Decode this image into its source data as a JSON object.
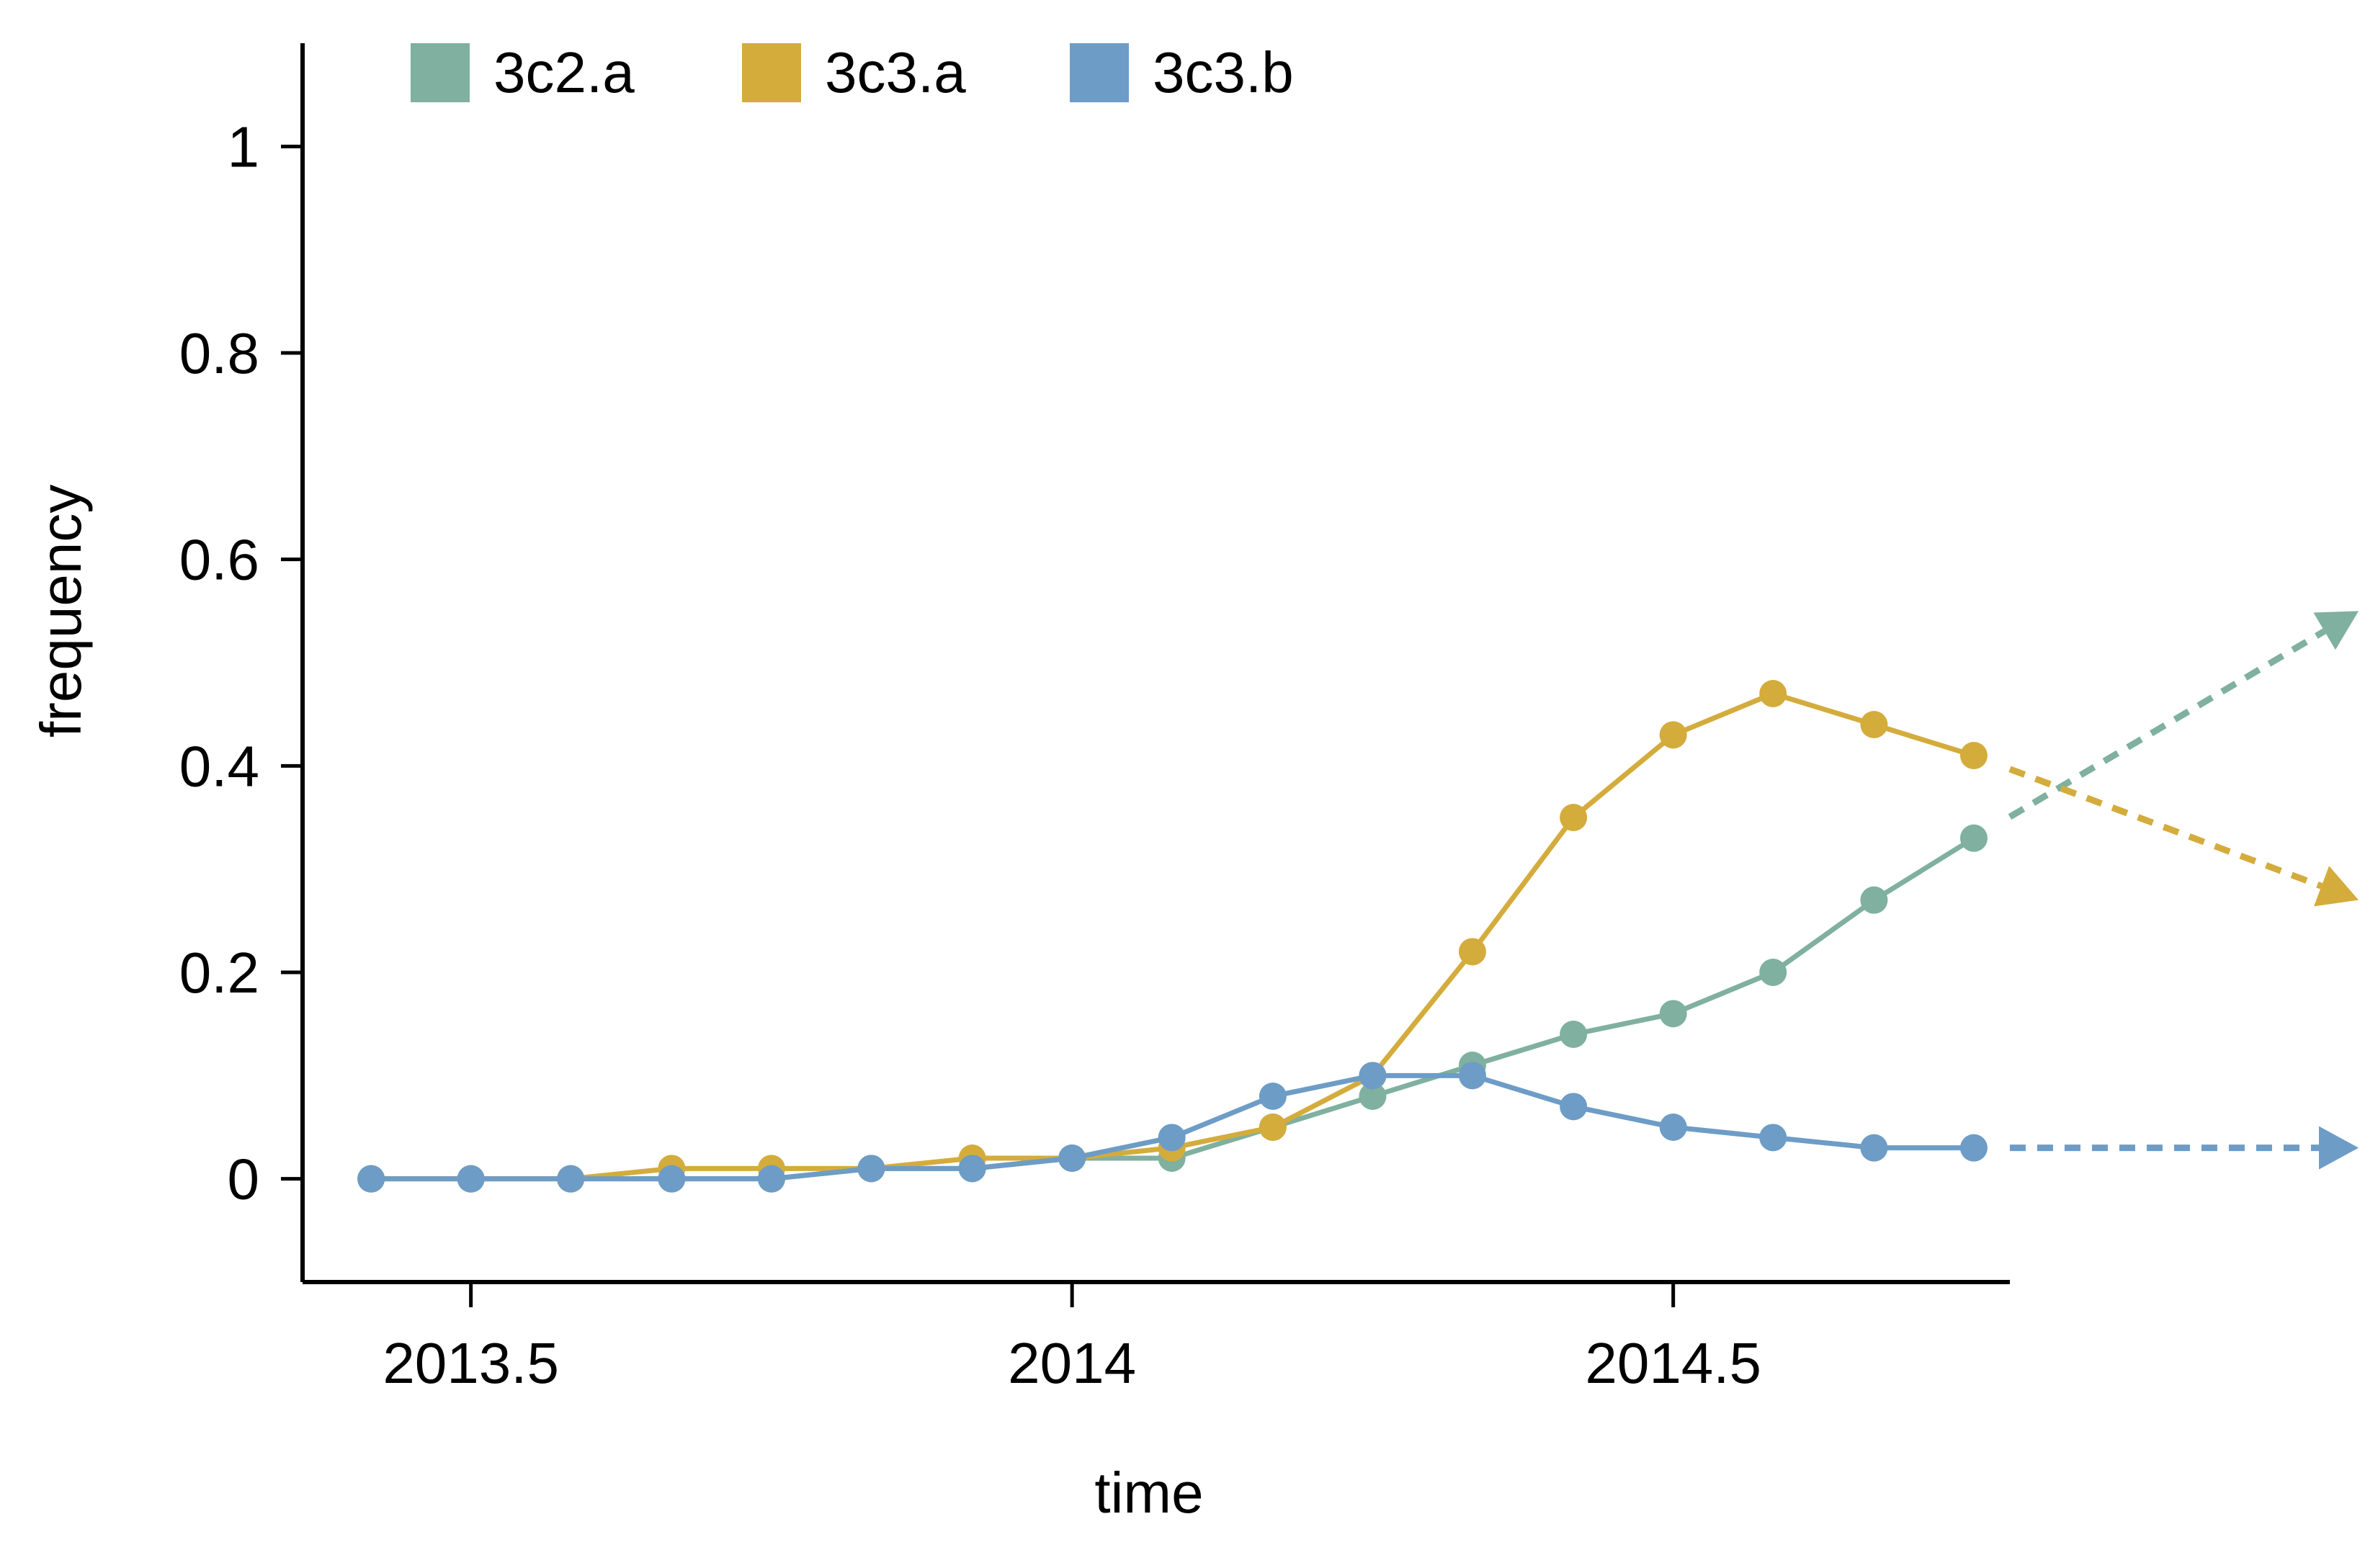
{
  "chart_data": {
    "type": "line",
    "xlabel": "time",
    "ylabel": "frequency",
    "xlim": [
      2013.36,
      2014.78
    ],
    "ylim": [
      -0.1,
      1.1
    ],
    "x_ticks": [
      {
        "value": 2013.5,
        "label": "2013.5"
      },
      {
        "value": 2014.0,
        "label": "2014"
      },
      {
        "value": 2014.5,
        "label": "2014.5"
      }
    ],
    "y_ticks": [
      {
        "value": 0,
        "label": "0"
      },
      {
        "value": 0.2,
        "label": "0.2"
      },
      {
        "value": 0.4,
        "label": "0.4"
      },
      {
        "value": 0.6,
        "label": "0.6"
      },
      {
        "value": 0.8,
        "label": "0.8"
      },
      {
        "value": 1.0,
        "label": "1"
      }
    ],
    "grid": false,
    "legend_position": "top",
    "x": [
      2013.417,
      2013.5,
      2013.583,
      2013.667,
      2013.75,
      2013.833,
      2013.917,
      2014.0,
      2014.083,
      2014.167,
      2014.25,
      2014.333,
      2014.417,
      2014.5,
      2014.583,
      2014.667,
      2014.75
    ],
    "series": [
      {
        "name": "3c2.a",
        "color": "#7fb0a0",
        "values": [
          0,
          0,
          0,
          0,
          0,
          0.01,
          0.01,
          0.02,
          0.02,
          0.05,
          0.08,
          0.11,
          0.14,
          0.16,
          0.2,
          0.27,
          0.33
        ],
        "projection": {
          "x": 2015.07,
          "y": 0.55
        }
      },
      {
        "name": "3c3.a",
        "color": "#d4ac3c",
        "values": [
          0,
          0,
          0,
          0.01,
          0.01,
          0.01,
          0.02,
          0.02,
          0.03,
          0.05,
          0.1,
          0.22,
          0.35,
          0.43,
          0.47,
          0.44,
          0.41
        ],
        "projection": {
          "x": 2015.07,
          "y": 0.27
        }
      },
      {
        "name": "3c3.b",
        "color": "#6d9cc6",
        "values": [
          0,
          0,
          0,
          0,
          0,
          0.01,
          0.01,
          0.02,
          0.04,
          0.08,
          0.1,
          0.1,
          0.07,
          0.05,
          0.04,
          0.03,
          0.03
        ],
        "projection": {
          "x": 2015.07,
          "y": 0.03
        }
      }
    ]
  }
}
